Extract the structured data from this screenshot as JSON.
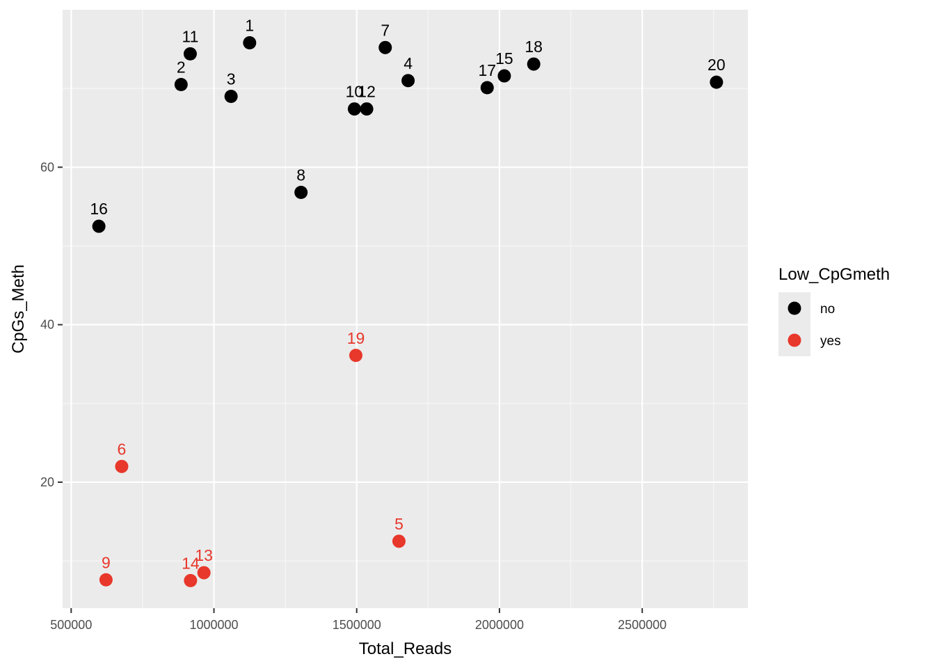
{
  "chart_data": {
    "type": "scatter",
    "title": "",
    "xlabel": "Total_Reads",
    "ylabel": "CpGs_Meth",
    "xlim": [
      470000,
      2870000
    ],
    "ylim": [
      4,
      80
    ],
    "x_ticks": [
      500000,
      1000000,
      1500000,
      2000000,
      2500000
    ],
    "x_tick_labels": [
      "500000",
      "1000000",
      "1500000",
      "2000000",
      "2500000"
    ],
    "y_ticks": [
      20,
      40,
      60
    ],
    "y_tick_labels": [
      "20",
      "40",
      "60"
    ],
    "grid": true,
    "legend": {
      "title": "Low_CpGmeth",
      "placement": "right",
      "entries": [
        {
          "key": "no",
          "label": "no",
          "color": "#000000"
        },
        {
          "key": "yes",
          "label": "yes",
          "color": "#e8372b"
        }
      ]
    },
    "points": [
      {
        "label": "1",
        "x": 1125000,
        "y": 75.8,
        "group": "no"
      },
      {
        "label": "2",
        "x": 885000,
        "y": 70.5,
        "group": "no"
      },
      {
        "label": "3",
        "x": 1060000,
        "y": 69.0,
        "group": "no"
      },
      {
        "label": "4",
        "x": 1680000,
        "y": 71.0,
        "group": "no"
      },
      {
        "label": "5",
        "x": 1648000,
        "y": 12.5,
        "group": "yes"
      },
      {
        "label": "6",
        "x": 677000,
        "y": 22.0,
        "group": "yes"
      },
      {
        "label": "7",
        "x": 1600000,
        "y": 75.2,
        "group": "no"
      },
      {
        "label": "8",
        "x": 1305000,
        "y": 56.8,
        "group": "no"
      },
      {
        "label": "9",
        "x": 622000,
        "y": 7.6,
        "group": "yes"
      },
      {
        "label": "10",
        "x": 1492000,
        "y": 67.4,
        "group": "no"
      },
      {
        "label": "11",
        "x": 917000,
        "y": 74.4,
        "group": "no"
      },
      {
        "label": "12",
        "x": 1535000,
        "y": 67.4,
        "group": "no"
      },
      {
        "label": "13",
        "x": 965000,
        "y": 8.5,
        "group": "yes"
      },
      {
        "label": "14",
        "x": 918000,
        "y": 7.5,
        "group": "yes"
      },
      {
        "label": "15",
        "x": 2017000,
        "y": 71.6,
        "group": "no"
      },
      {
        "label": "16",
        "x": 597000,
        "y": 52.5,
        "group": "no"
      },
      {
        "label": "17",
        "x": 1957000,
        "y": 70.1,
        "group": "no"
      },
      {
        "label": "18",
        "x": 2120000,
        "y": 73.1,
        "group": "no"
      },
      {
        "label": "19",
        "x": 1497000,
        "y": 36.1,
        "group": "yes"
      },
      {
        "label": "20",
        "x": 2760000,
        "y": 70.8,
        "group": "no"
      }
    ]
  }
}
